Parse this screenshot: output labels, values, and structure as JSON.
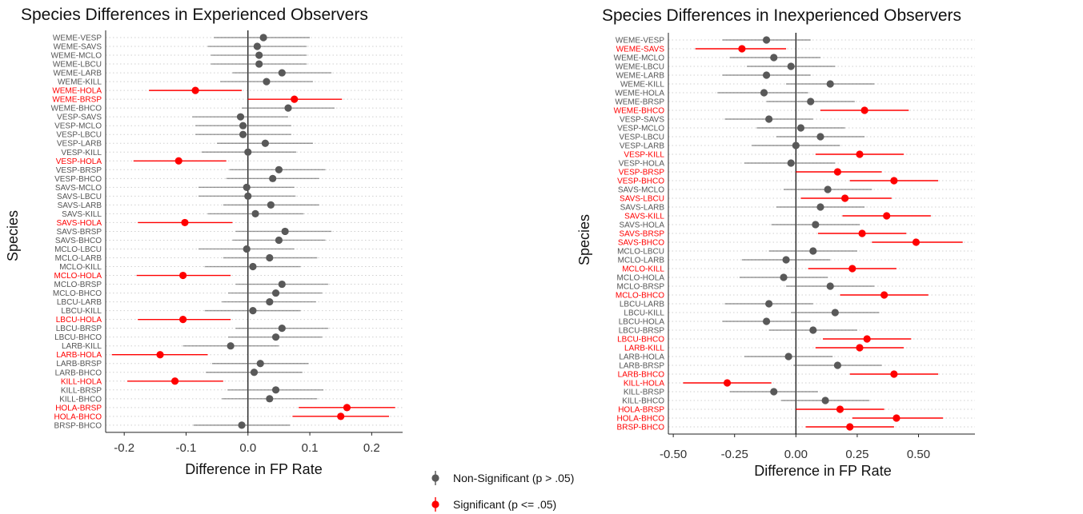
{
  "colors": {
    "nonsig": "#595959",
    "sig": "#ff0000",
    "grid": "#cfcfcf"
  },
  "legend": {
    "items": [
      {
        "label": "Non-Significant (p > .05)",
        "color": "#595959"
      },
      {
        "label": "Significant (p <= .05)",
        "color": "#ff0000"
      }
    ]
  },
  "chart_data": [
    {
      "type": "scatter",
      "title": "Species Differences in Experienced Observers",
      "xlabel": "Difference in FP Rate",
      "ylabel": "Species",
      "xlim": [
        -0.23,
        0.25
      ],
      "xticks": [
        -0.2,
        -0.1,
        0.0,
        0.1,
        0.2
      ],
      "xtick_labels": [
        "-0.2",
        "-0.1",
        "0.0",
        "0.1",
        "0.2"
      ],
      "grid": "horizontal dotted",
      "points": [
        {
          "label": "WEME-VESP",
          "est": 0.025,
          "lo": -0.055,
          "hi": 0.1,
          "sig": false
        },
        {
          "label": "WEME-SAVS",
          "est": 0.015,
          "lo": -0.065,
          "hi": 0.095,
          "sig": false
        },
        {
          "label": "WEME-MCLO",
          "est": 0.018,
          "lo": -0.06,
          "hi": 0.095,
          "sig": false
        },
        {
          "label": "WEME-LBCU",
          "est": 0.018,
          "lo": -0.06,
          "hi": 0.095,
          "sig": false
        },
        {
          "label": "WEME-LARB",
          "est": 0.055,
          "lo": -0.025,
          "hi": 0.135,
          "sig": false
        },
        {
          "label": "WEME-KILL",
          "est": 0.03,
          "lo": -0.045,
          "hi": 0.105,
          "sig": false
        },
        {
          "label": "WEME-HOLA",
          "est": -0.085,
          "lo": -0.16,
          "hi": -0.01,
          "sig": true
        },
        {
          "label": "WEME-BRSP",
          "est": 0.075,
          "lo": 0.0,
          "hi": 0.152,
          "sig": true
        },
        {
          "label": "WEME-BHCO",
          "est": 0.065,
          "lo": -0.01,
          "hi": 0.14,
          "sig": false
        },
        {
          "label": "VESP-SAVS",
          "est": -0.012,
          "lo": -0.09,
          "hi": 0.065,
          "sig": false
        },
        {
          "label": "VESP-MCLO",
          "est": -0.008,
          "lo": -0.085,
          "hi": 0.07,
          "sig": false
        },
        {
          "label": "VESP-LBCU",
          "est": -0.008,
          "lo": -0.085,
          "hi": 0.07,
          "sig": false
        },
        {
          "label": "VESP-LARB",
          "est": 0.028,
          "lo": -0.05,
          "hi": 0.105,
          "sig": false
        },
        {
          "label": "VESP-KILL",
          "est": 0.0,
          "lo": -0.075,
          "hi": 0.078,
          "sig": false
        },
        {
          "label": "VESP-HOLA",
          "est": -0.112,
          "lo": -0.185,
          "hi": -0.035,
          "sig": true
        },
        {
          "label": "VESP-BRSP",
          "est": 0.05,
          "lo": -0.03,
          "hi": 0.125,
          "sig": false
        },
        {
          "label": "VESP-BHCO",
          "est": 0.04,
          "lo": -0.035,
          "hi": 0.115,
          "sig": false
        },
        {
          "label": "SAVS-MCLO",
          "est": -0.002,
          "lo": -0.08,
          "hi": 0.075,
          "sig": false
        },
        {
          "label": "SAVS-LBCU",
          "est": 0.0,
          "lo": -0.08,
          "hi": 0.077,
          "sig": false
        },
        {
          "label": "SAVS-LARB",
          "est": 0.037,
          "lo": -0.04,
          "hi": 0.115,
          "sig": false
        },
        {
          "label": "SAVS-KILL",
          "est": 0.012,
          "lo": -0.065,
          "hi": 0.09,
          "sig": false
        },
        {
          "label": "SAVS-HOLA",
          "est": -0.102,
          "lo": -0.178,
          "hi": -0.025,
          "sig": true
        },
        {
          "label": "SAVS-BRSP",
          "est": 0.06,
          "lo": -0.02,
          "hi": 0.135,
          "sig": false
        },
        {
          "label": "SAVS-BHCO",
          "est": 0.05,
          "lo": -0.025,
          "hi": 0.125,
          "sig": false
        },
        {
          "label": "MCLO-LBCU",
          "est": -0.002,
          "lo": -0.08,
          "hi": 0.075,
          "sig": false
        },
        {
          "label": "MCLO-LARB",
          "est": 0.035,
          "lo": -0.04,
          "hi": 0.112,
          "sig": false
        },
        {
          "label": "MCLO-KILL",
          "est": 0.008,
          "lo": -0.07,
          "hi": 0.085,
          "sig": false
        },
        {
          "label": "MCLO-HOLA",
          "est": -0.105,
          "lo": -0.18,
          "hi": -0.028,
          "sig": true
        },
        {
          "label": "MCLO-BRSP",
          "est": 0.055,
          "lo": -0.02,
          "hi": 0.13,
          "sig": false
        },
        {
          "label": "MCLO-BHCO",
          "est": 0.045,
          "lo": -0.032,
          "hi": 0.12,
          "sig": false
        },
        {
          "label": "LBCU-LARB",
          "est": 0.035,
          "lo": -0.042,
          "hi": 0.11,
          "sig": false
        },
        {
          "label": "LBCU-KILL",
          "est": 0.008,
          "lo": -0.07,
          "hi": 0.085,
          "sig": false
        },
        {
          "label": "LBCU-HOLA",
          "est": -0.105,
          "lo": -0.178,
          "hi": -0.028,
          "sig": true
        },
        {
          "label": "LBCU-BRSP",
          "est": 0.055,
          "lo": -0.02,
          "hi": 0.13,
          "sig": false
        },
        {
          "label": "LBCU-BHCO",
          "est": 0.045,
          "lo": -0.032,
          "hi": 0.12,
          "sig": false
        },
        {
          "label": "LARB-KILL",
          "est": -0.028,
          "lo": -0.105,
          "hi": 0.05,
          "sig": false
        },
        {
          "label": "LARB-HOLA",
          "est": -0.142,
          "lo": -0.22,
          "hi": -0.065,
          "sig": true
        },
        {
          "label": "LARB-BRSP",
          "est": 0.02,
          "lo": -0.058,
          "hi": 0.098,
          "sig": false
        },
        {
          "label": "LARB-BHCO",
          "est": 0.01,
          "lo": -0.068,
          "hi": 0.088,
          "sig": false
        },
        {
          "label": "KILL-HOLA",
          "est": -0.118,
          "lo": -0.195,
          "hi": -0.04,
          "sig": true
        },
        {
          "label": "KILL-BRSP",
          "est": 0.045,
          "lo": -0.033,
          "hi": 0.122,
          "sig": false
        },
        {
          "label": "KILL-BHCO",
          "est": 0.035,
          "lo": -0.042,
          "hi": 0.112,
          "sig": false
        },
        {
          "label": "HOLA-BRSP",
          "est": 0.16,
          "lo": 0.082,
          "hi": 0.238,
          "sig": true
        },
        {
          "label": "HOLA-BHCO",
          "est": 0.15,
          "lo": 0.072,
          "hi": 0.228,
          "sig": true
        },
        {
          "label": "BRSP-BHCO",
          "est": -0.01,
          "lo": -0.088,
          "hi": 0.068,
          "sig": false
        }
      ]
    },
    {
      "type": "scatter",
      "title": "Species Differences in Inexperienced Observers",
      "xlabel": "Difference in FP Rate",
      "ylabel": "Species",
      "xlim": [
        -0.52,
        0.73
      ],
      "xticks": [
        -0.5,
        -0.25,
        0.0,
        0.25,
        0.5
      ],
      "xtick_labels": [
        "-0.50",
        "-0.25",
        "0.00",
        "0.25",
        "0.50"
      ],
      "grid": "horizontal dotted",
      "points": [
        {
          "label": "WEME-VESP",
          "est": -0.12,
          "lo": -0.3,
          "hi": 0.06,
          "sig": false
        },
        {
          "label": "WEME-SAVS",
          "est": -0.22,
          "lo": -0.41,
          "hi": -0.04,
          "sig": true
        },
        {
          "label": "WEME-MCLO",
          "est": -0.09,
          "lo": -0.27,
          "hi": 0.1,
          "sig": false
        },
        {
          "label": "WEME-LBCU",
          "est": -0.02,
          "lo": -0.2,
          "hi": 0.16,
          "sig": false
        },
        {
          "label": "WEME-LARB",
          "est": -0.12,
          "lo": -0.3,
          "hi": 0.06,
          "sig": false
        },
        {
          "label": "WEME-KILL",
          "est": 0.14,
          "lo": -0.04,
          "hi": 0.32,
          "sig": false
        },
        {
          "label": "WEME-HOLA",
          "est": -0.13,
          "lo": -0.32,
          "hi": 0.05,
          "sig": false
        },
        {
          "label": "WEME-BRSP",
          "est": 0.06,
          "lo": -0.12,
          "hi": 0.24,
          "sig": false
        },
        {
          "label": "WEME-BHCO",
          "est": 0.28,
          "lo": 0.1,
          "hi": 0.46,
          "sig": true
        },
        {
          "label": "VESP-SAVS",
          "est": -0.11,
          "lo": -0.29,
          "hi": 0.07,
          "sig": false
        },
        {
          "label": "VESP-MCLO",
          "est": 0.02,
          "lo": -0.16,
          "hi": 0.2,
          "sig": false
        },
        {
          "label": "VESP-LBCU",
          "est": 0.1,
          "lo": -0.08,
          "hi": 0.28,
          "sig": false
        },
        {
          "label": "VESP-LARB",
          "est": 0.0,
          "lo": -0.18,
          "hi": 0.18,
          "sig": false
        },
        {
          "label": "VESP-KILL",
          "est": 0.26,
          "lo": 0.08,
          "hi": 0.44,
          "sig": true
        },
        {
          "label": "VESP-HOLA",
          "est": -0.02,
          "lo": -0.21,
          "hi": 0.16,
          "sig": false
        },
        {
          "label": "VESP-BRSP",
          "est": 0.17,
          "lo": 0.0,
          "hi": 0.35,
          "sig": true
        },
        {
          "label": "VESP-BHCO",
          "est": 0.4,
          "lo": 0.22,
          "hi": 0.58,
          "sig": true
        },
        {
          "label": "SAVS-MCLO",
          "est": 0.13,
          "lo": -0.05,
          "hi": 0.31,
          "sig": false
        },
        {
          "label": "SAVS-LBCU",
          "est": 0.2,
          "lo": 0.02,
          "hi": 0.39,
          "sig": true
        },
        {
          "label": "SAVS-LARB",
          "est": 0.1,
          "lo": -0.08,
          "hi": 0.28,
          "sig": false
        },
        {
          "label": "SAVS-KILL",
          "est": 0.37,
          "lo": 0.19,
          "hi": 0.55,
          "sig": true
        },
        {
          "label": "SAVS-HOLA",
          "est": 0.08,
          "lo": -0.1,
          "hi": 0.26,
          "sig": false
        },
        {
          "label": "SAVS-BRSP",
          "est": 0.27,
          "lo": 0.09,
          "hi": 0.45,
          "sig": true
        },
        {
          "label": "SAVS-BHCO",
          "est": 0.49,
          "lo": 0.31,
          "hi": 0.68,
          "sig": true
        },
        {
          "label": "MCLO-LBCU",
          "est": 0.07,
          "lo": -0.11,
          "hi": 0.25,
          "sig": false
        },
        {
          "label": "MCLO-LARB",
          "est": -0.04,
          "lo": -0.22,
          "hi": 0.14,
          "sig": false
        },
        {
          "label": "MCLO-KILL",
          "est": 0.23,
          "lo": 0.05,
          "hi": 0.41,
          "sig": true
        },
        {
          "label": "MCLO-HOLA",
          "est": -0.05,
          "lo": -0.23,
          "hi": 0.13,
          "sig": false
        },
        {
          "label": "MCLO-BRSP",
          "est": 0.14,
          "lo": -0.04,
          "hi": 0.32,
          "sig": false
        },
        {
          "label": "MCLO-BHCO",
          "est": 0.36,
          "lo": 0.18,
          "hi": 0.54,
          "sig": true
        },
        {
          "label": "LBCU-LARB",
          "est": -0.11,
          "lo": -0.29,
          "hi": 0.07,
          "sig": false
        },
        {
          "label": "LBCU-KILL",
          "est": 0.16,
          "lo": -0.02,
          "hi": 0.34,
          "sig": false
        },
        {
          "label": "LBCU-HOLA",
          "est": -0.12,
          "lo": -0.3,
          "hi": 0.06,
          "sig": false
        },
        {
          "label": "LBCU-BRSP",
          "est": 0.07,
          "lo": -0.11,
          "hi": 0.25,
          "sig": false
        },
        {
          "label": "LBCU-BHCO",
          "est": 0.29,
          "lo": 0.11,
          "hi": 0.47,
          "sig": true
        },
        {
          "label": "LARB-KILL",
          "est": 0.26,
          "lo": 0.08,
          "hi": 0.44,
          "sig": true
        },
        {
          "label": "LARB-HOLA",
          "est": -0.03,
          "lo": -0.21,
          "hi": 0.15,
          "sig": false
        },
        {
          "label": "LARB-BRSP",
          "est": 0.17,
          "lo": -0.01,
          "hi": 0.35,
          "sig": false
        },
        {
          "label": "LARB-BHCO",
          "est": 0.4,
          "lo": 0.22,
          "hi": 0.58,
          "sig": true
        },
        {
          "label": "KILL-HOLA",
          "est": -0.28,
          "lo": -0.46,
          "hi": -0.1,
          "sig": true
        },
        {
          "label": "KILL-BRSP",
          "est": -0.09,
          "lo": -0.27,
          "hi": 0.09,
          "sig": false
        },
        {
          "label": "KILL-BHCO",
          "est": 0.12,
          "lo": -0.06,
          "hi": 0.3,
          "sig": false
        },
        {
          "label": "HOLA-BRSP",
          "est": 0.18,
          "lo": 0.0,
          "hi": 0.36,
          "sig": true
        },
        {
          "label": "HOLA-BHCO",
          "est": 0.41,
          "lo": 0.23,
          "hi": 0.6,
          "sig": true
        },
        {
          "label": "BRSP-BHCO",
          "est": 0.22,
          "lo": 0.04,
          "hi": 0.4,
          "sig": true
        }
      ]
    }
  ]
}
